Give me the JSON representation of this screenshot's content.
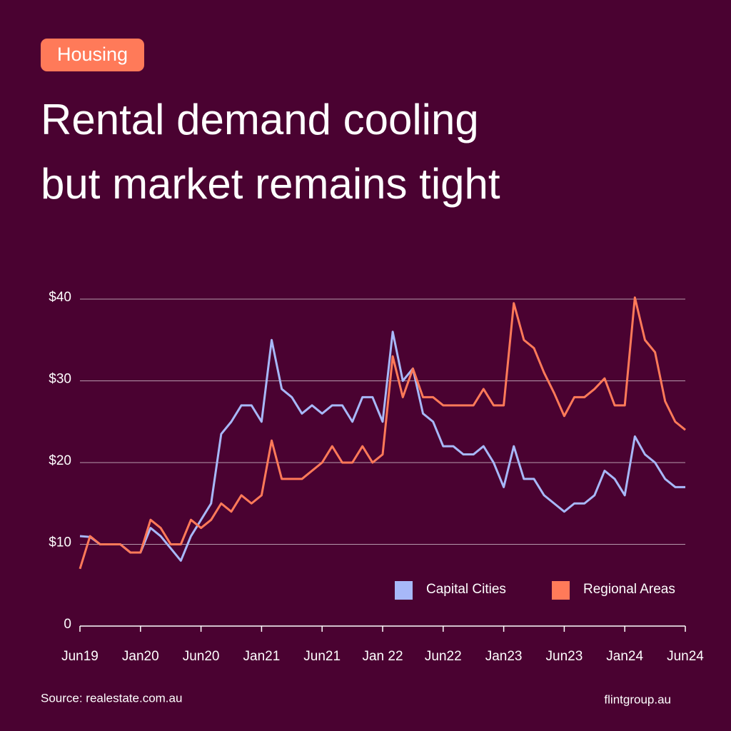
{
  "tag": "Housing",
  "chart_data": {
    "type": "line",
    "title": [
      "Rental demand cooling",
      "but market remains tight"
    ],
    "categories": [
      "Jun19",
      null,
      null,
      null,
      null,
      null,
      "Jan20",
      null,
      null,
      null,
      null,
      null,
      "Jun20",
      null,
      null,
      null,
      null,
      null,
      "Jan21",
      null,
      null,
      null,
      null,
      null,
      "Jun21",
      null,
      null,
      null,
      null,
      null,
      "Jan 22",
      null,
      null,
      null,
      null,
      null,
      "Jun22",
      null,
      null,
      null,
      null,
      null,
      "Jan23",
      null,
      null,
      null,
      null,
      null,
      "Jun23",
      null,
      null,
      null,
      null,
      null,
      "Jan24",
      null,
      null,
      null,
      null,
      null,
      "Jun24"
    ],
    "series": [
      {
        "name": "Capital Cities",
        "color": "#a7b8f9",
        "values": [
          11,
          10.9,
          10,
          10,
          10,
          9,
          9,
          12,
          11,
          9.5,
          8,
          11,
          13,
          15,
          23.5,
          25,
          27,
          27,
          25,
          35,
          29,
          28,
          26,
          27,
          26,
          27,
          27,
          25,
          28,
          28,
          25,
          36,
          30,
          31.5,
          26,
          25,
          22,
          22,
          21,
          21,
          22,
          20,
          17,
          22,
          18,
          18,
          16,
          15,
          14,
          15,
          15,
          16,
          19,
          18,
          16,
          23.2,
          21,
          20,
          18,
          17,
          17
        ]
      },
      {
        "name": "Regional Areas",
        "color": "#ff7a59",
        "values": [
          7,
          11,
          10,
          10,
          10,
          9,
          9,
          13,
          12,
          10,
          10,
          13,
          12,
          13,
          15,
          14,
          16,
          15,
          16,
          22.7,
          18,
          18,
          18,
          19,
          20,
          22,
          20,
          20,
          22,
          20,
          21,
          33,
          28,
          31.5,
          28,
          28,
          27,
          27,
          27,
          27,
          29,
          27,
          27,
          39.5,
          35,
          34,
          31,
          28.5,
          25.7,
          28,
          28,
          29,
          30.3,
          27,
          27,
          40.2,
          35,
          33.5,
          27.5,
          25,
          24
        ]
      }
    ],
    "ylim": [
      0,
      40
    ],
    "yticks": [
      0,
      {
        "value": 10,
        "label": "$10"
      },
      {
        "value": 20,
        "label": "$20"
      },
      {
        "value": 30,
        "label": "$30"
      },
      {
        "value": 40,
        "label": "$40"
      }
    ],
    "grid": true,
    "legend": "bottom-right"
  },
  "footer": {
    "source": "Source: realestate.com.au",
    "brand": "flintgroup.au"
  }
}
